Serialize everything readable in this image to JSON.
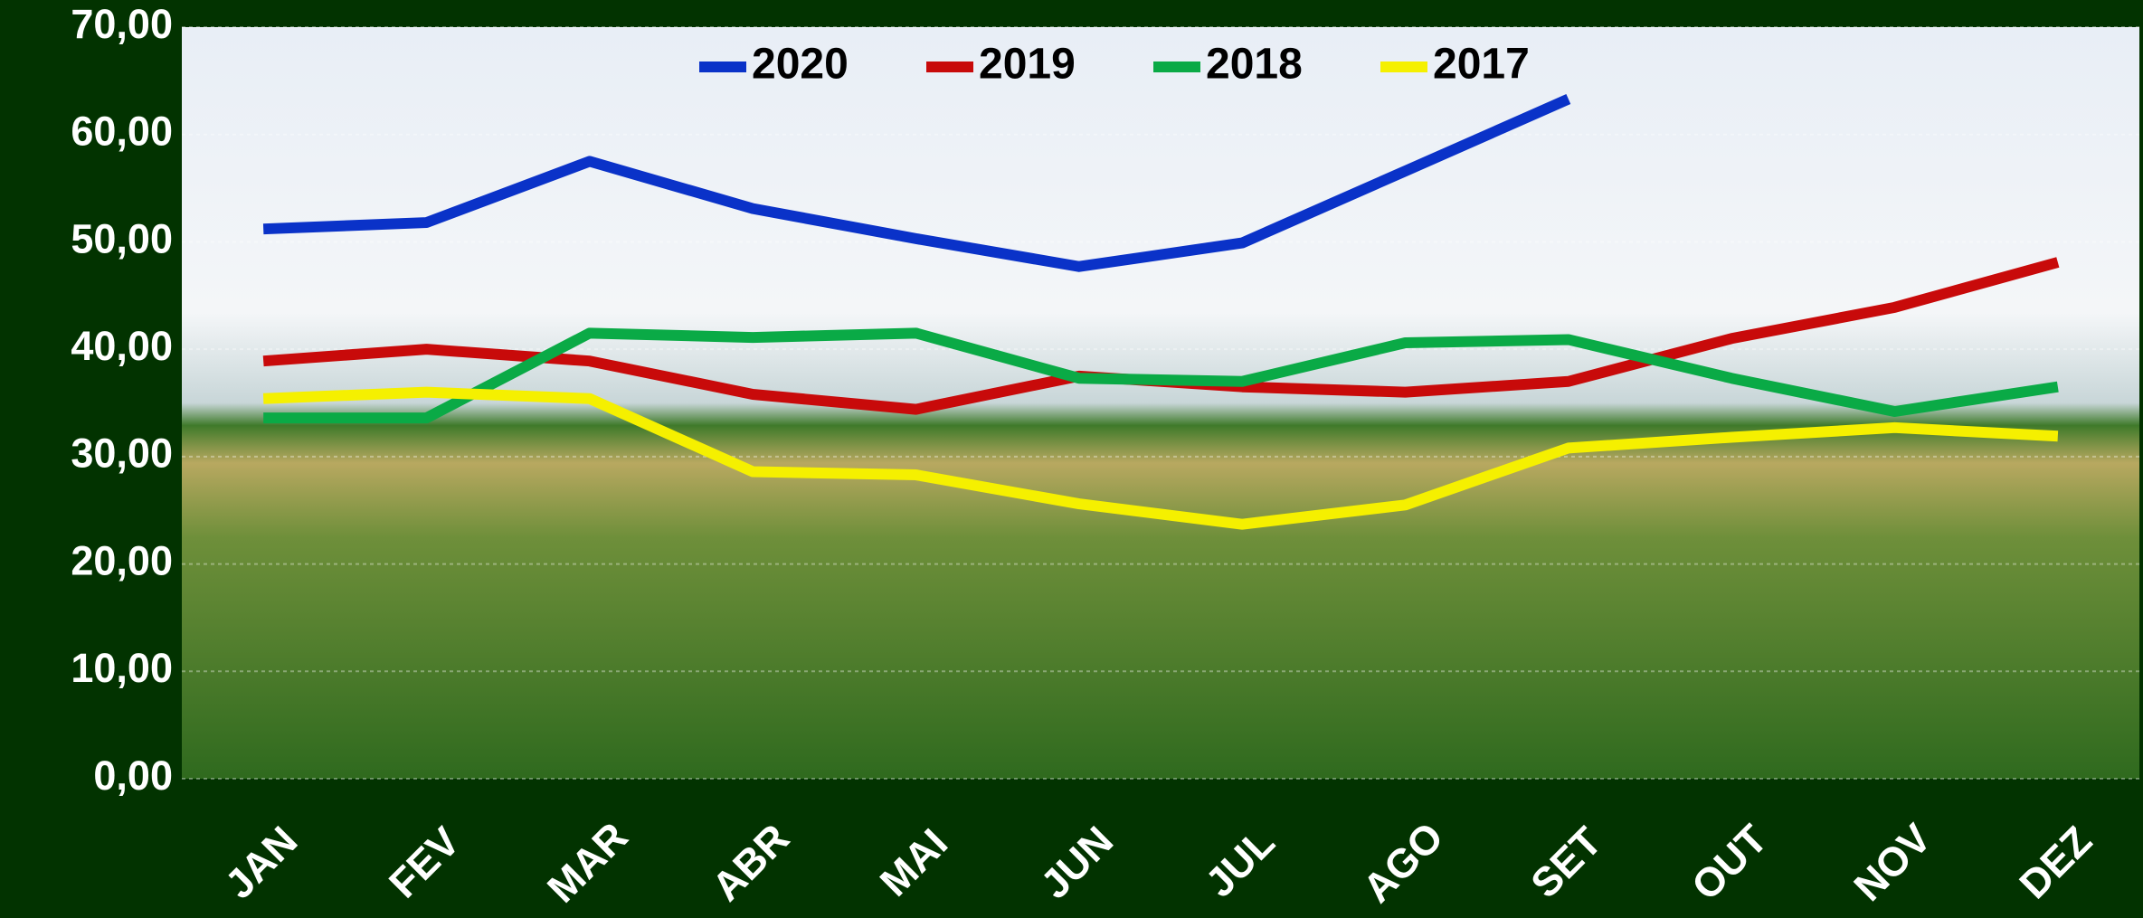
{
  "chart_data": {
    "type": "line",
    "categories": [
      "JAN",
      "FEV",
      "MAR",
      "ABR",
      "MAI",
      "JUN",
      "JUL",
      "AGO",
      "SET",
      "OUT",
      "NOV",
      "DEZ"
    ],
    "series": [
      {
        "name": "2020",
        "color": "#0a32c8",
        "values": [
          51.2,
          51.8,
          57.5,
          53.1,
          50.3,
          47.7,
          49.9,
          56.6,
          63.3,
          null,
          null,
          null
        ]
      },
      {
        "name": "2019",
        "color": "#c80a0a",
        "values": [
          38.9,
          40.0,
          38.9,
          35.8,
          34.4,
          37.5,
          36.5,
          36.0,
          37.0,
          41.0,
          43.9,
          48.1
        ]
      },
      {
        "name": "2018",
        "color": "#0aaa46",
        "values": [
          33.6,
          33.6,
          41.5,
          41.1,
          41.5,
          37.3,
          37.0,
          40.6,
          40.9,
          37.3,
          34.2,
          36.5
        ]
      },
      {
        "name": "2017",
        "color": "#f5f000",
        "values": [
          35.4,
          36.0,
          35.4,
          28.6,
          28.3,
          25.6,
          23.7,
          25.5,
          30.8,
          31.8,
          32.7,
          31.9
        ]
      }
    ],
    "ylim": [
      0,
      70
    ],
    "yticks": [
      {
        "value": 0,
        "label": "0,00"
      },
      {
        "value": 10,
        "label": "10,00"
      },
      {
        "value": 20,
        "label": "20,00"
      },
      {
        "value": 30,
        "label": "30,00"
      },
      {
        "value": 40,
        "label": "40,00"
      },
      {
        "value": 50,
        "label": "50,00"
      },
      {
        "value": 60,
        "label": "60,00"
      },
      {
        "value": 70,
        "label": "70,00"
      }
    ],
    "grid": true
  }
}
